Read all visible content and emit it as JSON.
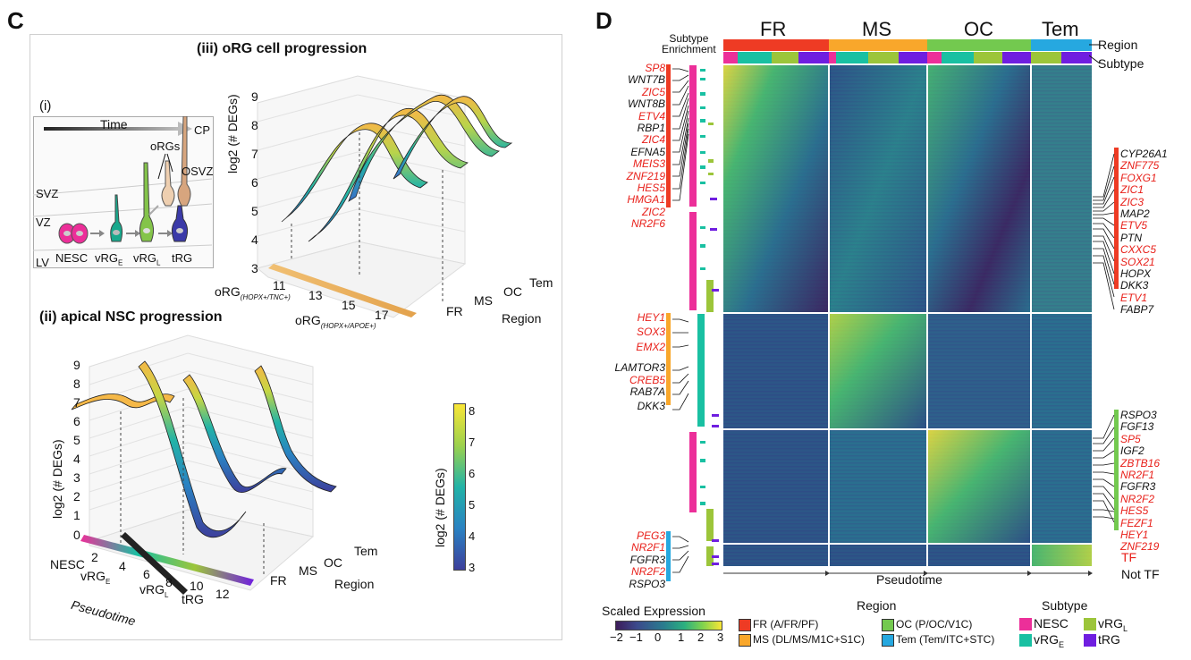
{
  "panel_c": {
    "letter": "C",
    "i_label": "(i)",
    "time": "Time",
    "cp": "CP",
    "orgs": "oRGs",
    "osvz": "OSVZ",
    "svz": "SVZ",
    "vz": "VZ",
    "lv": "LV",
    "cells": [
      "NESC",
      "vRG",
      "vRG",
      "tRG"
    ],
    "cell_subs": [
      "",
      "E",
      "L",
      ""
    ],
    "iii_title": "(iii)  oRG cell progression",
    "ii_title": "(ii) apical NSC progression",
    "ylabel": "log2 (# DEGs)",
    "yticks_iii": [
      "9",
      "8",
      "7",
      "6",
      "5",
      "4",
      "3"
    ],
    "yticks_ii": [
      "9",
      "8",
      "7",
      "6",
      "5",
      "4",
      "3",
      "2",
      "1",
      "0"
    ],
    "org1": "oRG",
    "org1_sub": "(HOPX+/TNC+)",
    "org2": "oRG",
    "org2_sub": "(HOPX+/APOE+)",
    "xticks_iii": [
      "11",
      "13",
      "15",
      "17"
    ],
    "xticks_ii": [
      "2",
      "4",
      "6",
      "8",
      "10",
      "12"
    ],
    "pseudotime": "Pseudotime",
    "regions": [
      "FR",
      "MS",
      "OC",
      "Tem"
    ],
    "region_label": "Region",
    "cb_ticks": [
      "8",
      "7",
      "6",
      "5",
      "4",
      "3"
    ],
    "cb_label": "log2 (# DEGs)"
  },
  "panel_d": {
    "letter": "D",
    "subtype_enrichment": "Subtype\nEnrichment",
    "regions": [
      "FR",
      "MS",
      "OC",
      "Tem"
    ],
    "region_label": "Region",
    "subtype_label": "Subtype",
    "pseudotime": "Pseudotime",
    "left_genes": [
      {
        "name": "SP8",
        "tf": true
      },
      {
        "name": "WNT7B",
        "tf": false
      },
      {
        "name": "ZIC5",
        "tf": true
      },
      {
        "name": "WNT8B",
        "tf": false
      },
      {
        "name": "ETV4",
        "tf": true
      },
      {
        "name": "RBP1",
        "tf": false
      },
      {
        "name": "ZIC4",
        "tf": true
      },
      {
        "name": "EFNA5",
        "tf": false
      },
      {
        "name": "MEIS3",
        "tf": true
      },
      {
        "name": "ZNF219",
        "tf": true
      },
      {
        "name": "HES5",
        "tf": true
      },
      {
        "name": "HMGA1",
        "tf": true
      },
      {
        "name": "ZIC2",
        "tf": true
      },
      {
        "name": "NR2F6",
        "tf": true
      }
    ],
    "left_genes2": [
      {
        "name": "HEY1",
        "tf": true
      },
      {
        "name": "SOX3",
        "tf": true
      },
      {
        "name": "EMX2",
        "tf": true
      },
      {
        "name": "LAMTOR3",
        "tf": false
      },
      {
        "name": "CREB5",
        "tf": true
      },
      {
        "name": "RAB7A",
        "tf": false
      },
      {
        "name": "DKK3",
        "tf": false
      }
    ],
    "left_genes3": [
      {
        "name": "PEG3",
        "tf": true
      },
      {
        "name": "NR2F1",
        "tf": true
      },
      {
        "name": "FGFR3",
        "tf": false
      },
      {
        "name": "NR2F2",
        "tf": true
      },
      {
        "name": "RSPO3",
        "tf": false
      }
    ],
    "right_genes": [
      {
        "name": "CYP26A1",
        "tf": false
      },
      {
        "name": "ZNF775",
        "tf": true
      },
      {
        "name": "FOXG1",
        "tf": true
      },
      {
        "name": "ZIC1",
        "tf": true
      },
      {
        "name": "ZIC3",
        "tf": true
      },
      {
        "name": "MAP2",
        "tf": false
      },
      {
        "name": "ETV5",
        "tf": true
      },
      {
        "name": "PTN",
        "tf": false
      },
      {
        "name": "CXXC5",
        "tf": true
      },
      {
        "name": "SOX21",
        "tf": true
      },
      {
        "name": "HOPX",
        "tf": false
      },
      {
        "name": "DKK3",
        "tf": false
      },
      {
        "name": "ETV1",
        "tf": true
      },
      {
        "name": "FABP7",
        "tf": false
      }
    ],
    "right_genes2": [
      {
        "name": "RSPO3",
        "tf": false
      },
      {
        "name": "FGF13",
        "tf": false
      },
      {
        "name": "SP5",
        "tf": true
      },
      {
        "name": "IGF2",
        "tf": false
      },
      {
        "name": "ZBTB16",
        "tf": true
      },
      {
        "name": "NR2F1",
        "tf": true
      },
      {
        "name": "FGFR3",
        "tf": false
      },
      {
        "name": "NR2F2",
        "tf": true
      },
      {
        "name": "HES5",
        "tf": true
      },
      {
        "name": "FEZF1",
        "tf": true
      },
      {
        "name": "HEY1",
        "tf": true
      },
      {
        "name": "ZNF219",
        "tf": true
      }
    ],
    "tf_label": "TF",
    "not_tf_label": "Not TF",
    "scaled_expression": "Scaled Expression",
    "se_ticks": [
      "−2",
      "−1",
      "0",
      "1",
      "2",
      "3"
    ],
    "legend_region_title": "Region",
    "legend_regions": [
      {
        "label": "FR (A/FR/PF)",
        "color": "#ee3b24"
      },
      {
        "label": "MS (DL/MS/M1C+S1C)",
        "color": "#f9a72b"
      },
      {
        "label": "OC (P/OC/V1C)",
        "color": "#73c94f"
      },
      {
        "label": "Tem (Tem/ITC+STC)",
        "color": "#26a8e0"
      }
    ],
    "legend_subtype_title": "Subtype",
    "legend_subtypes": [
      {
        "label": "NESC",
        "sub": "",
        "color": "#ec2f99"
      },
      {
        "label": "vRG",
        "sub": "L",
        "color": "#9cc53a"
      },
      {
        "label": "vRG",
        "sub": "E",
        "color": "#19c0a2"
      },
      {
        "label": "tRG",
        "sub": "",
        "color": "#6f1ee0"
      }
    ]
  },
  "colors": {
    "fr": "#ee3b24",
    "ms": "#f9a72b",
    "oc": "#73c94f",
    "tem": "#26a8e0",
    "nesc": "#ec2f99",
    "vrge": "#19c0a2",
    "vrgl": "#9cc53a",
    "trg": "#6f1ee0",
    "tf": "#e8201a"
  }
}
